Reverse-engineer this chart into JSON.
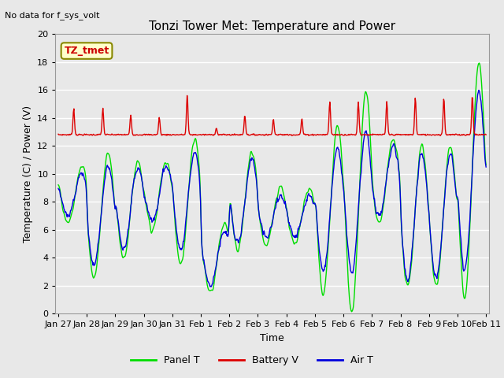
{
  "title": "Tonzi Tower Met: Temperature and Power",
  "top_left_text": "No data for f_sys_volt",
  "xlabel": "Time",
  "ylabel": "Temperature (C) / Power (V)",
  "ylim": [
    0,
    20
  ],
  "background_color": "#e8e8e8",
  "grid_color": "white",
  "annotation_label": "TZ_tmet",
  "annotation_bg": "#ffffcc",
  "annotation_border": "#888800",
  "x_tick_labels": [
    "Jan 27",
    "Jan 28",
    "Jan 29",
    "Jan 30",
    "Jan 31",
    "Feb 1",
    "Feb 2",
    "Feb 3",
    "Feb 4",
    "Feb 5",
    "Feb 6",
    "Feb 7",
    "Feb 8",
    "Feb 9",
    "Feb 10",
    "Feb 11"
  ],
  "legend_entries": [
    "Panel T",
    "Battery V",
    "Air T"
  ],
  "legend_colors": [
    "#00dd00",
    "#dd0000",
    "#0000dd"
  ],
  "line_width": 1.0
}
